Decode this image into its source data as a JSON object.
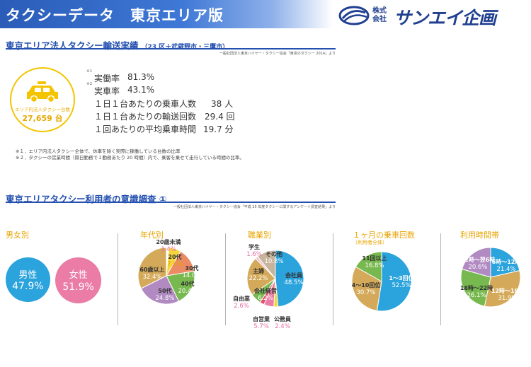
{
  "header": {
    "title": "タクシーデータ　東京エリア版",
    "logo_small": "株式会社",
    "logo_name": "サンエイ企画",
    "colors": {
      "bar": "#2a5cb8",
      "logo": "#1f3f8f"
    }
  },
  "section1": {
    "title": "東京エリア法人タクシー輸送実績",
    "subtitle": "（23 区＋武蔵野市・三鷹市）",
    "source": "一般社団法人東京ハイヤー・タクシー協会「東京のタクシー 2014」より",
    "taxi": {
      "icon": "taxi-icon",
      "caption": "エリア内法人タクシー台数",
      "count": "27,659 台"
    },
    "stats": [
      {
        "note": "※1",
        "label": "実働率",
        "value": "81.3%"
      },
      {
        "note": "※2",
        "label": "実車率",
        "value": "43.1%"
      },
      {
        "label": "１日１台あたりの乗車人数",
        "value": "38 人"
      },
      {
        "label": "１日１台あたりの輸送回数",
        "value": "29.4 回"
      },
      {
        "label": "１回あたりの平均乗車時間",
        "value": "19.7 分"
      }
    ],
    "footnotes": [
      "※１．エリア内法人タクシー全体で、休車を除く実際に稼働している台数の比率",
      "※２．タクシーの営業時間（隔日勤務で１勤務あたり 20 時間）内で、乗客を乗せて走行している時間の比率。"
    ]
  },
  "section2": {
    "title": "東京エリアタクシー利用者の意識調査 ①",
    "source": "一般社団法人東京ハイヤー・タクシー協会「平成 25 年度タクシーに関するアンケート調査結果」より"
  },
  "chart_data": [
    {
      "type": "bar",
      "title": "男女別",
      "categories": [
        "男性",
        "女性"
      ],
      "values": [
        47.9,
        51.9
      ],
      "labels": [
        "47.9%",
        "51.9%"
      ],
      "colors": [
        "#2ba3dc",
        "#ea7ca6"
      ]
    },
    {
      "type": "pie",
      "title": "年代別",
      "slices": [
        {
          "name": "20歳未満",
          "value": 1.4,
          "label": "1.4%",
          "color": "#ffffff"
        },
        {
          "name": "20代",
          "value": 7.0,
          "label": "7.0%",
          "color": "#f5d63a"
        },
        {
          "name": "30代",
          "value": 14.0,
          "label": "14.0%",
          "color": "#ea8b63"
        },
        {
          "name": "40代",
          "value": 20.4,
          "label": "20.4%",
          "color": "#77b84f"
        },
        {
          "name": "50代",
          "value": 24.8,
          "label": "24.8%",
          "color": "#b18ac2"
        },
        {
          "name": "60歳以上",
          "value": 32.4,
          "label": "32.4%",
          "color": "#d4aa5a"
        }
      ]
    },
    {
      "type": "pie",
      "title": "職業別",
      "slices": [
        {
          "name": "会社員",
          "value": 48.5,
          "label": "48.5%",
          "color": "#2ba3dc"
        },
        {
          "name": "公務員",
          "value": 2.4,
          "label": "2.4%",
          "color": "#f5d63a"
        },
        {
          "name": "自営業",
          "value": 5.7,
          "label": "5.7%",
          "color": "#ea7ca6"
        },
        {
          "name": "自由業",
          "value": 2.6,
          "label": "2.6%",
          "color": "#e44f6f"
        },
        {
          "name": "会社経営",
          "value": 6.2,
          "label": "6.2%",
          "color": "#77b84f"
        },
        {
          "name": "主婦",
          "value": 22.2,
          "label": "22.2%",
          "color": "#d4aa5a"
        },
        {
          "name": "学生",
          "value": 1.6,
          "label": "1.6%",
          "color": "#f2c2d4"
        },
        {
          "name": "その他",
          "value": 10.8,
          "label": "10.8%",
          "color": "#c7b49b"
        }
      ]
    },
    {
      "type": "pie",
      "title": "１ヶ月の乗車回数",
      "subtitle": "（利用者全体）",
      "slices": [
        {
          "name": "1～3回位",
          "value": 52.5,
          "label": "52.5%",
          "color": "#2ba3dc"
        },
        {
          "name": "4～10回位",
          "value": 30.7,
          "label": "30.7%",
          "color": "#d4aa5a"
        },
        {
          "name": "11回以上",
          "value": 16.8,
          "label": "16.8%",
          "color": "#77b84f"
        }
      ]
    },
    {
      "type": "pie",
      "title": "利用時間帯",
      "slices": [
        {
          "name": "6時～12時",
          "value": 21.4,
          "label": "21.4%",
          "color": "#2ba3dc"
        },
        {
          "name": "12時～18時",
          "value": 31.9,
          "label": "31.9%",
          "color": "#d4aa5a"
        },
        {
          "name": "18時～22時",
          "value": 26.1,
          "label": "26.1%",
          "color": "#77b84f"
        },
        {
          "name": "22時～翌6時",
          "value": 20.6,
          "label": "20.6%",
          "color": "#b18ac2"
        }
      ]
    }
  ]
}
